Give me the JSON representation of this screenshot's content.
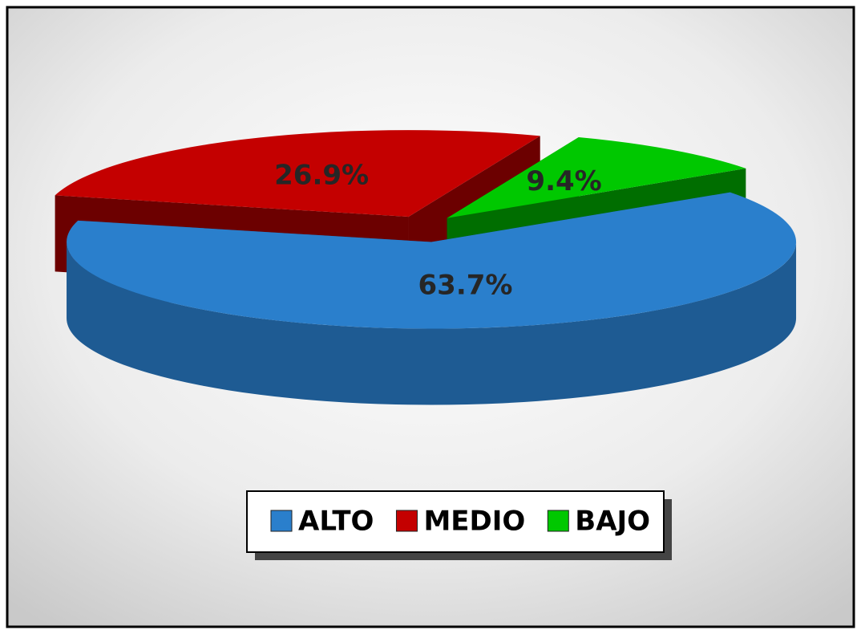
{
  "chart_data": {
    "type": "pie",
    "categories": [
      "ALTO",
      "MEDIO",
      "BAJO"
    ],
    "values": [
      63.7,
      26.9,
      9.4
    ],
    "value_labels": [
      "63.7%",
      "26.9%",
      "9.4%"
    ],
    "colors": [
      "#2a7fcc",
      "#c40000",
      "#00c800"
    ],
    "legend": "bottom"
  }
}
